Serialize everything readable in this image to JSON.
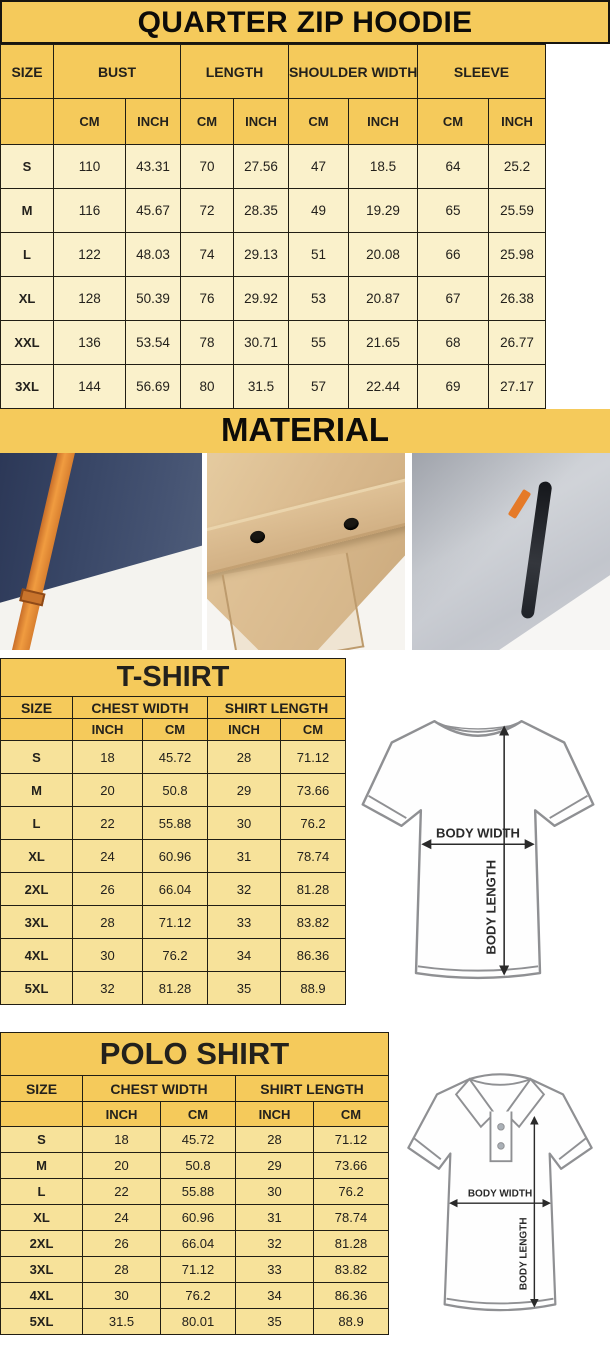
{
  "hoodie_chart": {
    "title": "QUARTER ZIP HOODIE",
    "columns": {
      "size": "SIZE",
      "groups": [
        "BUST",
        "LENGTH",
        "SHOULDER WIDTH",
        "SLEEVE"
      ],
      "units": [
        "CM",
        "INCH",
        "CM",
        "INCH",
        "CM",
        "INCH",
        "CM",
        "INCH"
      ]
    },
    "rows": [
      {
        "size": "S",
        "values": [
          "110",
          "43.31",
          "70",
          "27.56",
          "47",
          "18.5",
          "64",
          "25.2"
        ]
      },
      {
        "size": "M",
        "values": [
          "116",
          "45.67",
          "72",
          "28.35",
          "49",
          "19.29",
          "65",
          "25.59"
        ]
      },
      {
        "size": "L",
        "values": [
          "122",
          "48.03",
          "74",
          "29.13",
          "51",
          "20.08",
          "66",
          "25.98"
        ]
      },
      {
        "size": "XL",
        "values": [
          "128",
          "50.39",
          "76",
          "29.92",
          "53",
          "20.87",
          "67",
          "26.38"
        ]
      },
      {
        "size": "XXL",
        "values": [
          "136",
          "53.54",
          "78",
          "30.71",
          "55",
          "21.65",
          "68",
          "26.77"
        ]
      },
      {
        "size": "3XL",
        "values": [
          "144",
          "56.69",
          "80",
          "31.5",
          "57",
          "22.44",
          "69",
          "27.17"
        ]
      }
    ]
  },
  "material": {
    "title": "MATERIAL",
    "photos": [
      {
        "name": "navy-fleece-orange-drawstring-photo"
      },
      {
        "name": "khaki-snap-flap-pocket-photo"
      },
      {
        "name": "gray-fleece-sleeve-zipper-photo"
      }
    ]
  },
  "tshirt_chart": {
    "title": "T-SHIRT",
    "columns": {
      "size": "SIZE",
      "groups": [
        "CHEST WIDTH",
        "SHIRT LENGTH"
      ],
      "units": [
        "INCH",
        "CM",
        "INCH",
        "CM"
      ]
    },
    "rows": [
      {
        "size": "S",
        "values": [
          "18",
          "45.72",
          "28",
          "71.12"
        ]
      },
      {
        "size": "M",
        "values": [
          "20",
          "50.8",
          "29",
          "73.66"
        ]
      },
      {
        "size": "L",
        "values": [
          "22",
          "55.88",
          "30",
          "76.2"
        ]
      },
      {
        "size": "XL",
        "values": [
          "24",
          "60.96",
          "31",
          "78.74"
        ]
      },
      {
        "size": "2XL",
        "values": [
          "26",
          "66.04",
          "32",
          "81.28"
        ]
      },
      {
        "size": "3XL",
        "values": [
          "28",
          "71.12",
          "33",
          "83.82"
        ]
      },
      {
        "size": "4XL",
        "values": [
          "30",
          "76.2",
          "34",
          "86.36"
        ]
      },
      {
        "size": "5XL",
        "values": [
          "32",
          "81.28",
          "35",
          "88.9"
        ]
      }
    ],
    "diagram": {
      "width_label": "BODY WIDTH",
      "length_label": "BODY LENGTH"
    }
  },
  "polo_chart": {
    "title": "POLO SHIRT",
    "columns": {
      "size": "SIZE",
      "groups": [
        "CHEST WIDTH",
        "SHIRT LENGTH"
      ],
      "units": [
        "INCH",
        "CM",
        "INCH",
        "CM"
      ]
    },
    "rows": [
      {
        "size": "S",
        "values": [
          "18",
          "45.72",
          "28",
          "71.12"
        ]
      },
      {
        "size": "M",
        "values": [
          "20",
          "50.8",
          "29",
          "73.66"
        ]
      },
      {
        "size": "L",
        "values": [
          "22",
          "55.88",
          "30",
          "76.2"
        ]
      },
      {
        "size": "XL",
        "values": [
          "24",
          "60.96",
          "31",
          "78.74"
        ]
      },
      {
        "size": "2XL",
        "values": [
          "26",
          "66.04",
          "32",
          "81.28"
        ]
      },
      {
        "size": "3XL",
        "values": [
          "28",
          "71.12",
          "33",
          "83.82"
        ]
      },
      {
        "size": "4XL",
        "values": [
          "30",
          "76.2",
          "34",
          "86.36"
        ]
      },
      {
        "size": "5XL",
        "values": [
          "31.5",
          "80.01",
          "35",
          "88.9"
        ]
      }
    ],
    "diagram": {
      "width_label": "BODY WIDTH",
      "length_label": "BODY LENGTH"
    }
  },
  "colors": {
    "header_yellow": "#f5ca5b",
    "hoodie_cell_cream": "#faf1cb",
    "shirt_cell_yellow": "#f7e29a",
    "border_dark": "#211e14",
    "strap_orange": "#e8923a"
  }
}
